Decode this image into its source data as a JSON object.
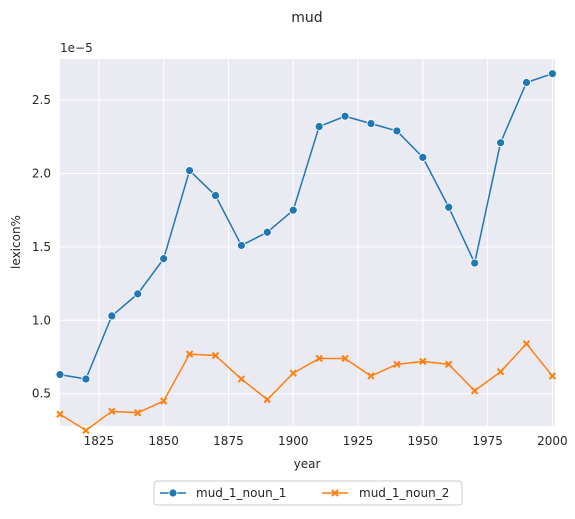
{
  "chart_data": {
    "type": "line",
    "title": "mud",
    "xlabel": "year",
    "ylabel": "lexicon%",
    "y_offset_label": "1e−5",
    "x_ticks": [
      1825,
      1850,
      1875,
      1900,
      1925,
      1950,
      1975,
      2000
    ],
    "y_ticks": [
      0.5,
      1.0,
      1.5,
      2.0,
      2.5
    ],
    "y_tick_labels": [
      "0.5",
      "1.0",
      "1.5",
      "2.0",
      "2.5"
    ],
    "xlim": [
      1810,
      2001
    ],
    "ylim": [
      0.28,
      2.78
    ],
    "grid": true,
    "legend_position": "bottom-center",
    "x": [
      1810,
      1820,
      1830,
      1840,
      1850,
      1860,
      1870,
      1880,
      1890,
      1900,
      1910,
      1920,
      1930,
      1940,
      1950,
      1960,
      1970,
      1980,
      1990,
      2000
    ],
    "series": [
      {
        "name": "mud_1_noun_1",
        "color": "#1f77b4",
        "marker": "circle",
        "values": [
          0.63,
          0.6,
          1.03,
          1.18,
          1.42,
          2.02,
          1.85,
          1.51,
          1.6,
          1.75,
          2.32,
          2.39,
          2.34,
          2.29,
          2.11,
          1.77,
          1.39,
          2.21,
          2.62,
          2.68
        ]
      },
      {
        "name": "mud_1_noun_2",
        "color": "#ff7f0e",
        "marker": "x",
        "values": [
          0.36,
          0.25,
          0.38,
          0.37,
          0.45,
          0.77,
          0.76,
          0.6,
          0.46,
          0.64,
          0.74,
          0.74,
          0.62,
          0.7,
          0.72,
          0.7,
          0.52,
          0.65,
          0.84,
          0.62
        ]
      }
    ]
  }
}
